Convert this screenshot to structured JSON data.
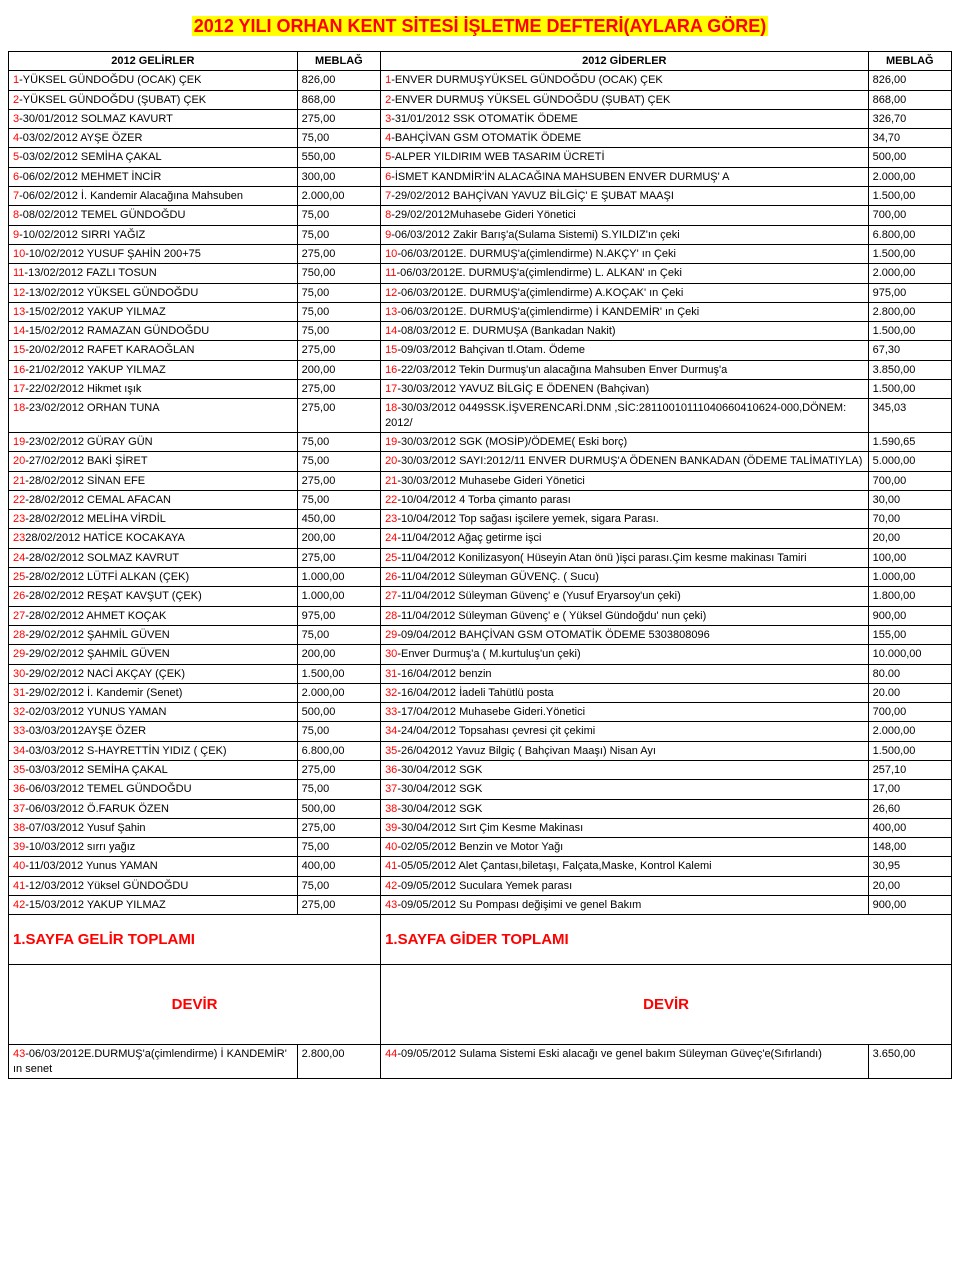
{
  "title": "2012 YILI ORHAN KENT SİTESİ İŞLETME DEFTERİ(AYLARA GÖRE)",
  "title_color": "#ff0000",
  "title_highlight": "#ffff00",
  "headers": {
    "gelir": "2012 GELİRLER",
    "gelir_amt": "MEBLAĞ",
    "gider": "2012 GİDERLER",
    "gider_amt": "MEBLAĞ"
  },
  "footer": {
    "gelir_total": "1.SAYFA GELİR TOPLAMI",
    "gider_total": "1.SAYFA GİDER TOPLAMI",
    "devir": "DEVİR"
  },
  "last_row": {
    "gelir_num": "43",
    "gelir_desc": "-06/03/2012E.DURMUŞ'a(çimlendirme) İ KANDEMİR' ın senet",
    "gelir_amt": "2.800,00",
    "gider_num": "44",
    "gider_desc": "-09/05/2012 Sulama Sistemi Eski alacağı ve genel bakım Süleyman Güveç'e(Sıfırlandı)",
    "gider_amt": "3.650,00"
  },
  "rows": [
    {
      "gn": "1",
      "gd": "-YÜKSEL GÜNDOĞDU (OCAK) ÇEK",
      "ga": "826,00",
      "xn": "1",
      "xd": "-ENVER DURMUŞYÜKSEL GÜNDOĞDU (OCAK) ÇEK",
      "xa": "826,00"
    },
    {
      "gn": "2",
      "gd": "-YÜKSEL GÜNDOĞDU (ŞUBAT) ÇEK",
      "ga": "868,00",
      "xn": "2",
      "xd": "-ENVER DURMUŞ YÜKSEL GÜNDOĞDU (ŞUBAT) ÇEK",
      "xa": "868,00"
    },
    {
      "gn": "3",
      "gd": "-30/01/2012 SOLMAZ KAVURT",
      "ga": "275,00",
      "xn": "3",
      "xd": "-31/01/2012 SSK OTOMATİK ÖDEME",
      "xa": "326,70"
    },
    {
      "gn": "4",
      "gd": "-03/02/2012 AYŞE ÖZER",
      "ga": "75,00",
      "xn": "4",
      "xd": "-BAHÇİVAN GSM OTOMATİK ÖDEME",
      "xa": "34,70"
    },
    {
      "gn": "5",
      "gd": "-03/02/2012 SEMİHA ÇAKAL",
      "ga": "550,00",
      "xn": "5",
      "xd": "-ALPER YILDIRIM WEB TASARIM ÜCRETİ",
      "xa": "500,00"
    },
    {
      "gn": "6",
      "gd": "-06/02/2012 MEHMET İNCİR",
      "ga": "300,00",
      "xn": "6",
      "xd": "-İSMET KANDMİR'İN ALACAĞINA MAHSUBEN ENVER DURMUŞ' A",
      "xa": "2.000,00"
    },
    {
      "gn": "7",
      "gd": "-06/02/2012 İ. Kandemir Alacağına Mahsuben",
      "ga": "2.000,00",
      "xn": "7",
      "xd": "-29/02/2012 BAHÇİVAN YAVUZ BİLGİÇ' E ŞUBAT MAAŞI",
      "xa": "1.500,00"
    },
    {
      "gn": "8",
      "gd": "-08/02/2012 TEMEL GÜNDOĞDU",
      "ga": "75,00",
      "xn": "8",
      "xd": "-29/02/2012Muhasebe Gideri Yönetici",
      "xa": "700,00"
    },
    {
      "gn": "9",
      "gd": "-10/02/2012 SIRRI YAĞIZ",
      "ga": "75,00",
      "xn": "9",
      "xd": "-06/03/2012 Zakir Barış'a(Sulama Sistemi) S.YILDIZ'ın çeki",
      "xa": "6.800,00"
    },
    {
      "gn": "10",
      "gd": "-10/02/2012 YUSUF ŞAHİN 200+75",
      "ga": "275,00",
      "xn": "10",
      "xd": "-06/03/2012E. DURMUŞ'a(çimlendirme) N.AKÇY' ın Çeki",
      "xa": "1.500,00"
    },
    {
      "gn": "11",
      "gd": "-13/02/2012 FAZLI TOSUN",
      "ga": "750,00",
      "xn": "11",
      "xd": "-06/03/2012E. DURMUŞ'a(çimlendirme) L. ALKAN' ın Çeki",
      "xa": "2.000,00"
    },
    {
      "gn": "12",
      "gd": "-13/02/2012 YÜKSEL GÜNDOĞDU",
      "ga": "75,00",
      "xn": "12",
      "xd": "-06/03/2012E. DURMUŞ'a(çimlendirme) A.KOÇAK' ın Çeki",
      "xa": "975,00"
    },
    {
      "gn": "13",
      "gd": "-15/02/2012 YAKUP YILMAZ",
      "ga": "75,00",
      "xn": "13",
      "xd": "-06/03/2012E. DURMUŞ'a(çimlendirme) İ KANDEMİR' ın Çeki",
      "xa": "2.800,00"
    },
    {
      "gn": "14",
      "gd": "-15/02/2012 RAMAZAN GÜNDOĞDU",
      "ga": "75,00",
      "xn": "14",
      "xd": "-08/03/2012 E. DURMUŞA (Bankadan Nakit)",
      "xa": "1.500,00"
    },
    {
      "gn": "15",
      "gd": "-20/02/2012 RAFET KARAOĞLAN",
      "ga": "275,00",
      "xn": "15",
      "xd": "-09/03/2012 Bahçivan tl.Otam. Ödeme",
      "xa": "67,30"
    },
    {
      "gn": "16",
      "gd": "-21/02/2012 YAKUP YILMAZ",
      "ga": "200,00",
      "xn": "16",
      "xd": "-22/03/2012 Tekin Durmuş'un alacağına Mahsuben Enver Durmuş'a",
      "xa": "3.850,00"
    },
    {
      "gn": "17",
      "gd": "-22/02/2012 Hikmet ışık",
      "ga": "275,00",
      "xn": "17",
      "xd": "-30/03/2012 YAVUZ BİLGİÇ E ÖDENEN (Bahçivan)",
      "xa": "1.500,00"
    },
    {
      "gn": "18",
      "gd": "-23/02/2012 ORHAN TUNA",
      "ga": "275,00",
      "xn": "18",
      "xd": "-30/03/2012 0449SSK.İŞVERENCARİ.DNM ,SİC:28110010111040660410624-000,DÖNEM: 2012/",
      "xa": "345,03"
    },
    {
      "gn": "19",
      "gd": "-23/02/2012 GÜRAY GÜN",
      "ga": "75,00",
      "xn": "19",
      "xd": "-30/03/2012 SGK (MOSİP)/ÖDEME( Eski borç)",
      "xa": "1.590,65"
    },
    {
      "gn": "20",
      "gd": "-27/02/2012 BAKİ ŞİRET",
      "ga": "75,00",
      "xn": "20",
      "xd": "-30/03/2012 SAYI:2012/11 ENVER DURMUŞ'A ÖDENEN BANKADAN (ÖDEME TALİMATIYLA)",
      "xa": "5.000,00"
    },
    {
      "gn": "21",
      "gd": "-28/02/2012 SİNAN EFE",
      "ga": "275,00",
      "xn": "21",
      "xd": "-30/03/2012 Muhasebe Gideri Yönetici",
      "xa": "700,00"
    },
    {
      "gn": "22",
      "gd": "-28/02/2012 CEMAL AFACAN",
      "ga": "75,00",
      "xn": "22",
      "xd": "-10/04/2012 4 Torba çimanto parası",
      "xa": "30,00"
    },
    {
      "gn": "23",
      "gd": "-28/02/2012 MELİHA VİRDİL",
      "ga": "450,00",
      "xn": "23",
      "xd": "-10/04/2012 Top sağası işcilere yemek, sigara Parası.",
      "xa": "70,00"
    },
    {
      "gn": "23",
      "gd": "28/02/2012 HATİCE KOCAKAYA",
      "ga": "200,00",
      "xn": "24",
      "xd": "-11/04/2012 Ağaç getirme işci",
      "xa": "20,00"
    },
    {
      "gn": "24",
      "gd": "-28/02/2012 SOLMAZ KAVRUT",
      "ga": "275,00",
      "xn": "25",
      "xd": "-11/04/2012 Konilizasyon( Hüseyin Atan önü )işci parası.Çim kesme makinası Tamiri",
      "xa": "100,00"
    },
    {
      "gn": "25",
      "gd": "-28/02/2012 LÜTFİ ALKAN (ÇEK)",
      "ga": "1.000,00",
      "xn": "26",
      "xd": "-11/04/2012 Süleyman GÜVENÇ. ( Sucu)",
      "xa": "1.000,00"
    },
    {
      "gn": "26",
      "gd": "-28/02/2012 REŞAT KAVŞUT (ÇEK)",
      "ga": "1.000,00",
      "xn": "27",
      "xd": "-11/04/2012 Süleyman Güvenç' e (Yusuf Eryarsoy'un çeki)",
      "xa": "1.800,00"
    },
    {
      "gn": "27",
      "gd": "-28/02/2012 AHMET KOÇAK",
      "ga": "975,00",
      "xn": "28",
      "xd": "-11/04/2012 Süleyman Güvenç' e ( Yüksel Gündoğdu' nun çeki)",
      "xa": "900,00"
    },
    {
      "gn": "28",
      "gd": "-29/02/2012 ŞAHMİL GÜVEN",
      "ga": "75,00",
      "xn": "29",
      "xd": "-09/04/2012 BAHÇİVAN GSM OTOMATİK ÖDEME 5303808096",
      "xa": "155,00"
    },
    {
      "gn": "29",
      "gd": "-29/02/2012 ŞAHMİL GÜVEN",
      "ga": "200,00",
      "xn": "30",
      "xd": "-Enver Durmuş'a ( M.kurtuluş'un çeki)",
      "xa": "10.000,00"
    },
    {
      "gn": "30",
      "gd": "-29/02/2012 NACİ AKÇAY (ÇEK)",
      "ga": "1.500,00",
      "xn": "31",
      "xd": "-16/04/2012 benzin",
      "xa": "80.00"
    },
    {
      "gn": "31",
      "gd": "-29/02/2012 İ. Kandemir (Senet)",
      "ga": "2.000,00",
      "xn": "32",
      "xd": "-16/04/2012 İadeli Tahütlü posta",
      "xa": "20.00"
    },
    {
      "gn": "32",
      "gd": "-02/03/2012 YUNUS YAMAN",
      "ga": "500,00",
      "xn": "33",
      "xd": "-17/04/2012 Muhasebe Gideri.Yönetici",
      "xa": "700,00"
    },
    {
      "gn": "33",
      "gd": "-03/03/2012AYŞE ÖZER",
      "ga": "75,00",
      "xn": "34",
      "xd": "-24/04/2012 Topsahası çevresi çit çekimi",
      "xa": "2.000,00"
    },
    {
      "gn": "34",
      "gd": "-03/03/2012 S-HAYRETTİN YIDIZ ( ÇEK)",
      "ga": "6.800,00",
      "xn": "35",
      "xd": "-26/042012 Yavuz Bilgiç ( Bahçivan Maaşı) Nisan Ayı",
      "xa": "1.500,00"
    },
    {
      "gn": "35",
      "gd": "-03/03/2012 SEMİHA ÇAKAL",
      "ga": "275,00",
      "xn": "36",
      "xd": "-30/04/2012 SGK",
      "xa": "257,10"
    },
    {
      "gn": "36",
      "gd": "-06/03/2012 TEMEL GÜNDOĞDU",
      "ga": "75,00",
      "xn": "37",
      "xd": "-30/04/2012 SGK",
      "xa": "17,00"
    },
    {
      "gn": "37",
      "gd": "-06/03/2012 Ö.FARUK ÖZEN",
      "ga": "500,00",
      "xn": "38",
      "xd": "-30/04/2012 SGK",
      "xa": "26,60"
    },
    {
      "gn": "38",
      "gd": "-07/03/2012 Yusuf Şahin",
      "ga": "275,00",
      "xn": "39",
      "xd": "-30/04/2012 Sırt Çim Kesme Makinası",
      "xa": "400,00"
    },
    {
      "gn": "39",
      "gd": "-10/03/2012 sırrı yağız",
      "ga": "75,00",
      "xn": "40",
      "xd": "-02/05/2012 Benzin ve Motor Yağı",
      "xa": "148,00"
    },
    {
      "gn": "40",
      "gd": "-11/03/2012 Yunus YAMAN",
      "ga": "400,00",
      "xn": "41",
      "xd": "-05/05/2012 Alet Çantası,biletaşı, Falçata,Maske, Kontrol Kalemi",
      "xa": "30,95"
    },
    {
      "gn": "41",
      "gd": "-12/03/2012 Yüksel GÜNDOĞDU",
      "ga": "75,00",
      "xn": "42",
      "xd": "-09/05/2012 Suculara Yemek parası",
      "xa": "20,00"
    },
    {
      "gn": "42",
      "gd": "-15/03/2012 YAKUP YILMAZ",
      "ga": "275,00",
      "xn": "43",
      "xd": "-09/05/2012 Su Pompası değişimi ve genel Bakım",
      "xa": "900,00"
    }
  ]
}
